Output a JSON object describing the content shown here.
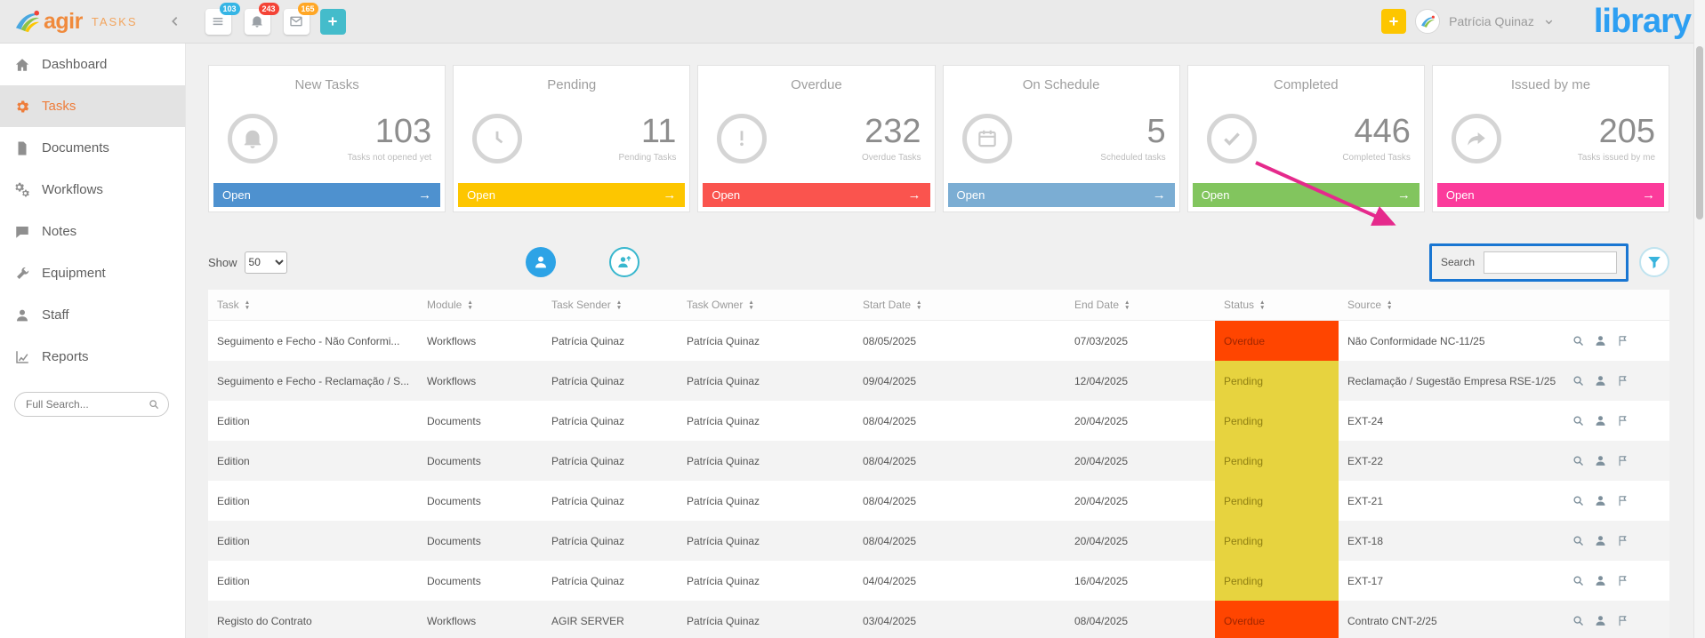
{
  "topbar": {
    "logo_text": "agir",
    "app_label": "TASKS",
    "nav_tiles": [
      {
        "name": "tasks",
        "icon": "list",
        "count": "103",
        "badge_color": "#35b5e5"
      },
      {
        "name": "alerts",
        "icon": "bell",
        "count": "243",
        "badge_color": "#f44336"
      },
      {
        "name": "messages",
        "icon": "mail",
        "count": "165",
        "badge_color": "#ffa726"
      }
    ],
    "user_name": "Patrícia Quinaz",
    "brand_right": "library",
    "add_color": "#fdc600",
    "tile_add_color": "#44bccb"
  },
  "sidebar": {
    "items": [
      {
        "label": "Dashboard",
        "icon": "home",
        "active": false
      },
      {
        "label": "Tasks",
        "icon": "gear",
        "active": true
      },
      {
        "label": "Documents",
        "icon": "document",
        "active": false
      },
      {
        "label": "Workflows",
        "icon": "workflow",
        "active": false
      },
      {
        "label": "Notes",
        "icon": "chat",
        "active": false
      },
      {
        "label": "Equipment",
        "icon": "wrench",
        "active": false
      },
      {
        "label": "Staff",
        "icon": "person",
        "active": false
      },
      {
        "label": "Reports",
        "icon": "chart",
        "active": false
      }
    ],
    "search_placeholder": "Full Search..."
  },
  "cards": [
    {
      "title": "New Tasks",
      "value": "103",
      "subtitle": "Tasks not opened yet",
      "action": "Open",
      "color": "#4e91cf",
      "icon": "bell"
    },
    {
      "title": "Pending",
      "value": "11",
      "subtitle": "Pending Tasks",
      "action": "Open",
      "color": "#fdc600",
      "icon": "clock"
    },
    {
      "title": "Overdue",
      "value": "232",
      "subtitle": "Overdue Tasks",
      "action": "Open",
      "color": "#fa544e",
      "icon": "alert"
    },
    {
      "title": "On Schedule",
      "value": "5",
      "subtitle": "Scheduled tasks",
      "action": "Open",
      "color": "#7badd3",
      "icon": "calendar"
    },
    {
      "title": "Completed",
      "value": "446",
      "subtitle": "Completed Tasks",
      "action": "Open",
      "color": "#82c55e",
      "icon": "check"
    },
    {
      "title": "Issued by me",
      "value": "205",
      "subtitle": "Tasks issued by me",
      "action": "Open",
      "color": "#fb3b9b",
      "icon": "share"
    }
  ],
  "toolbar": {
    "show_label": "Show",
    "show_value": "50",
    "search_label": "Search",
    "search_value": ""
  },
  "table": {
    "columns": [
      {
        "label": "Task",
        "sortable": true
      },
      {
        "label": "Module",
        "sortable": true
      },
      {
        "label": "Task Sender",
        "sortable": true
      },
      {
        "label": "Task Owner",
        "sortable": true
      },
      {
        "label": "Start Date",
        "sortable": true
      },
      {
        "label": "End Date",
        "sortable": true
      },
      {
        "label": "Status",
        "sortable": true
      },
      {
        "label": "Source",
        "sortable": true
      }
    ],
    "status_styles": {
      "Overdue": {
        "bg": "#ff4500",
        "fg": "#9e2500"
      },
      "Pending": {
        "bg": "#e7d33f",
        "fg": "#8f7f12"
      }
    },
    "rows": [
      {
        "task": "Seguimento e Fecho - Não Conformi...",
        "module": "Workflows",
        "sender": "Patrícia Quinaz",
        "owner": "Patrícia Quinaz",
        "start": "08/05/2025",
        "end": "07/03/2025",
        "status": "Overdue",
        "source": "Não Conformidade NC-11/25"
      },
      {
        "task": "Seguimento e Fecho - Reclamação / S...",
        "module": "Workflows",
        "sender": "Patrícia Quinaz",
        "owner": "Patrícia Quinaz",
        "start": "09/04/2025",
        "end": "12/04/2025",
        "status": "Pending",
        "source": "Reclamação / Sugestão Empresa RSE-1/25"
      },
      {
        "task": "Edition",
        "module": "Documents",
        "sender": "Patrícia Quinaz",
        "owner": "Patrícia Quinaz",
        "start": "08/04/2025",
        "end": "20/04/2025",
        "status": "Pending",
        "source": "EXT-24"
      },
      {
        "task": "Edition",
        "module": "Documents",
        "sender": "Patrícia Quinaz",
        "owner": "Patrícia Quinaz",
        "start": "08/04/2025",
        "end": "20/04/2025",
        "status": "Pending",
        "source": "EXT-22"
      },
      {
        "task": "Edition",
        "module": "Documents",
        "sender": "Patrícia Quinaz",
        "owner": "Patrícia Quinaz",
        "start": "08/04/2025",
        "end": "20/04/2025",
        "status": "Pending",
        "source": "EXT-21"
      },
      {
        "task": "Edition",
        "module": "Documents",
        "sender": "Patrícia Quinaz",
        "owner": "Patrícia Quinaz",
        "start": "08/04/2025",
        "end": "20/04/2025",
        "status": "Pending",
        "source": "EXT-18"
      },
      {
        "task": "Edition",
        "module": "Documents",
        "sender": "Patrícia Quinaz",
        "owner": "Patrícia Quinaz",
        "start": "04/04/2025",
        "end": "16/04/2025",
        "status": "Pending",
        "source": "EXT-17"
      },
      {
        "task": "Registo do Contrato",
        "module": "Workflows",
        "sender": "AGIR SERVER",
        "owner": "Patrícia Quinaz",
        "start": "03/04/2025",
        "end": "08/04/2025",
        "status": "Overdue",
        "source": "Contrato CNT-2/25"
      }
    ]
  },
  "annotations": {
    "arrow_color": "#e52a8c",
    "highlight_color": "#1976d2"
  }
}
